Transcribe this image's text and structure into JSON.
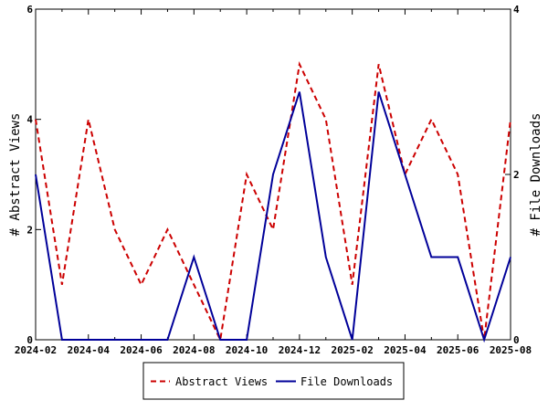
{
  "chart_data": {
    "type": "line",
    "x": [
      "2024-02",
      "2024-03",
      "2024-04",
      "2024-05",
      "2024-06",
      "2024-07",
      "2024-08",
      "2024-09",
      "2024-10",
      "2024-11",
      "2024-12",
      "2025-01",
      "2025-02",
      "2025-03",
      "2025-04",
      "2025-05",
      "2025-06",
      "2025-07",
      "2025-08"
    ],
    "x_tick_labels": [
      "2024-02",
      "2024-04",
      "2024-06",
      "2024-08",
      "2024-10",
      "2024-12",
      "2025-02",
      "2025-04",
      "2025-06",
      "2025-08"
    ],
    "series": [
      {
        "name": "Abstract Views",
        "axis": "left",
        "color": "#cc0000",
        "dash": "dashed",
        "values": [
          4,
          1,
          4,
          2,
          1,
          2,
          1,
          0,
          3,
          2,
          5,
          4,
          1,
          5,
          3,
          4,
          3,
          0,
          4
        ]
      },
      {
        "name": "File Downloads",
        "axis": "right",
        "color": "#000099",
        "dash": "solid",
        "values": [
          2,
          0,
          0,
          0,
          0,
          0,
          1,
          0,
          0,
          2,
          3,
          1,
          0,
          3,
          2,
          1,
          1,
          0,
          1
        ]
      }
    ],
    "ylabel_left": "# Abstract Views",
    "ylabel_right": "# File Downloads",
    "ylim_left": [
      0,
      6
    ],
    "ylim_right": [
      0,
      4
    ],
    "yticks_left": [
      0,
      2,
      4,
      6
    ],
    "yticks_right": [
      0,
      2,
      4
    ],
    "grid": false,
    "legend_position": "bottom-center"
  }
}
